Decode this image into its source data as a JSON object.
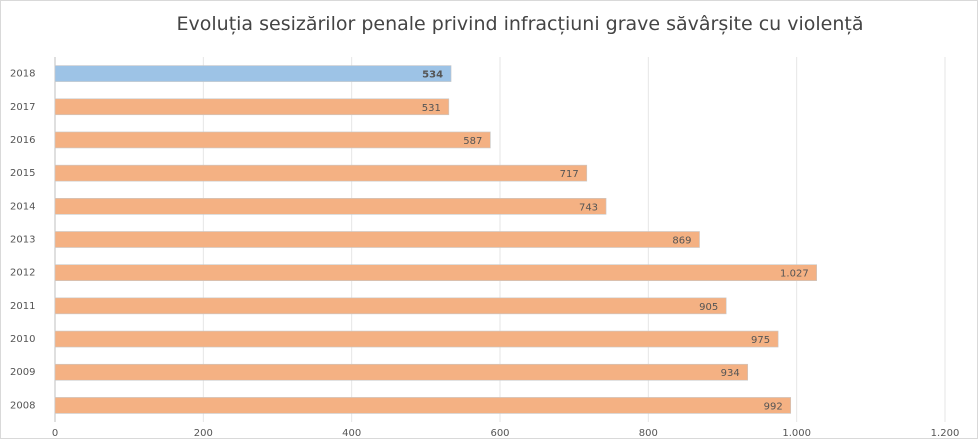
{
  "chart_data": {
    "type": "barh",
    "title": "Evoluția sesizărilor penale privind infracțiuni grave săvârșite cu violență",
    "categories": [
      "2018",
      "2017",
      "2016",
      "2015",
      "2014",
      "2013",
      "2012",
      "2011",
      "2010",
      "2009",
      "2008"
    ],
    "values": [
      534,
      531,
      587,
      717,
      743,
      869,
      1027,
      905,
      975,
      934,
      992
    ],
    "value_labels": [
      "534",
      "531",
      "587",
      "717",
      "743",
      "869",
      "1.027",
      "905",
      "975",
      "934",
      "992"
    ],
    "colors": [
      "#9dc3e6",
      "#f4b183",
      "#f4b183",
      "#f4b183",
      "#f4b183",
      "#f4b183",
      "#f4b183",
      "#f4b183",
      "#f4b183",
      "#f4b183",
      "#f4b183"
    ],
    "xlim": [
      0,
      1200
    ],
    "xticks": [
      0,
      200,
      400,
      600,
      800,
      {
        "value": 1000,
        "label": "1.000"
      },
      {
        "value": 1200,
        "label": "1.200"
      }
    ],
    "grid": true
  }
}
